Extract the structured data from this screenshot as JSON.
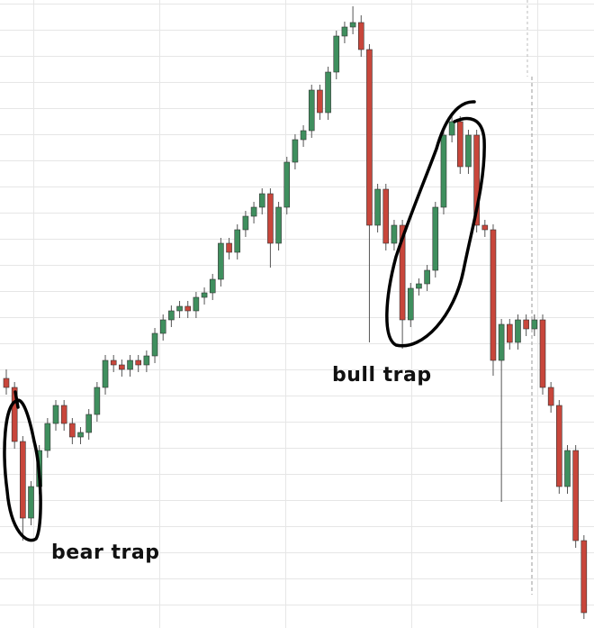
{
  "chart_data": {
    "type": "candlestick",
    "up_color": "#3f8f5e",
    "down_color": "#c8463b",
    "ylim": [
      0,
      697
    ],
    "open": [
      277,
      267,
      207,
      122,
      157,
      197,
      227,
      247,
      227,
      212,
      217,
      237,
      267,
      297,
      292,
      287,
      297,
      292,
      302,
      327,
      342,
      352,
      357,
      352,
      367,
      372,
      387,
      427,
      417,
      442,
      457,
      467,
      482,
      427,
      467,
      517,
      542,
      552,
      597,
      572,
      617,
      657,
      667,
      672,
      642,
      447,
      487,
      427,
      447,
      342,
      377,
      382,
      397,
      467,
      547,
      562,
      512,
      547,
      447,
      442,
      297,
      337,
      317,
      342,
      332,
      342,
      267,
      247,
      157,
      197,
      97
    ],
    "high": [
      287,
      273,
      213,
      163,
      203,
      233,
      253,
      253,
      233,
      223,
      243,
      273,
      303,
      303,
      298,
      303,
      303,
      308,
      333,
      348,
      358,
      363,
      363,
      373,
      378,
      393,
      433,
      433,
      448,
      463,
      473,
      488,
      488,
      473,
      523,
      548,
      558,
      603,
      603,
      623,
      663,
      673,
      690,
      680,
      648,
      493,
      493,
      453,
      453,
      383,
      388,
      403,
      473,
      553,
      568,
      568,
      553,
      553,
      453,
      448,
      343,
      343,
      348,
      348,
      348,
      348,
      273,
      253,
      203,
      203,
      103
    ],
    "low": [
      259,
      199,
      97,
      114,
      149,
      189,
      219,
      219,
      204,
      204,
      209,
      229,
      259,
      284,
      279,
      279,
      284,
      284,
      294,
      319,
      334,
      344,
      344,
      344,
      359,
      364,
      379,
      409,
      409,
      434,
      449,
      459,
      400,
      419,
      459,
      509,
      534,
      544,
      564,
      564,
      609,
      649,
      659,
      634,
      317,
      439,
      419,
      419,
      310,
      334,
      369,
      374,
      389,
      459,
      539,
      504,
      504,
      439,
      434,
      280,
      140,
      309,
      309,
      324,
      324,
      259,
      239,
      149,
      149,
      89,
      10
    ],
    "close": [
      267,
      207,
      122,
      157,
      197,
      227,
      247,
      227,
      212,
      217,
      237,
      267,
      297,
      292,
      287,
      297,
      292,
      302,
      327,
      342,
      352,
      357,
      352,
      367,
      372,
      387,
      427,
      417,
      442,
      457,
      467,
      482,
      427,
      467,
      517,
      542,
      552,
      597,
      572,
      617,
      657,
      667,
      672,
      642,
      447,
      487,
      427,
      447,
      342,
      377,
      382,
      397,
      467,
      547,
      562,
      512,
      547,
      447,
      442,
      297,
      337,
      317,
      342,
      332,
      342,
      267,
      247,
      157,
      197,
      97,
      17
    ],
    "annotations": [
      "bear trap",
      "bull trap"
    ]
  }
}
